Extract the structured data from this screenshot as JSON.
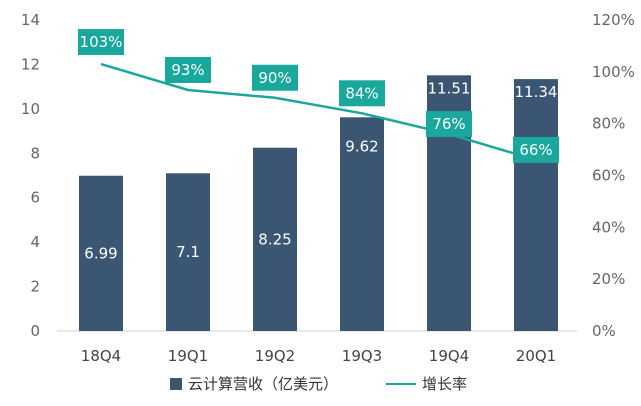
{
  "chart_data": {
    "type": "bar+line",
    "categories": [
      "18Q4",
      "19Q1",
      "19Q2",
      "19Q3",
      "19Q4",
      "20Q1"
    ],
    "series": [
      {
        "name": "云计算营收（亿美元）",
        "type": "bar",
        "axis": "left",
        "values": [
          6.99,
          7.1,
          8.25,
          9.62,
          11.51,
          11.34
        ],
        "labels": [
          "6.99",
          "7.1",
          "8.25",
          "9.62",
          "11.51",
          "11.34"
        ],
        "color": "#3b5673"
      },
      {
        "name": "增长率",
        "type": "line",
        "axis": "right",
        "values": [
          103,
          93,
          90,
          84,
          76,
          66
        ],
        "labels": [
          "103%",
          "93%",
          "90%",
          "84%",
          "76%",
          "66%"
        ],
        "color": "#1aa89d"
      }
    ],
    "left_axis": {
      "min": 0,
      "max": 14,
      "ticks": [
        "0",
        "2",
        "4",
        "6",
        "8",
        "10",
        "12",
        "14"
      ]
    },
    "right_axis": {
      "min": 0,
      "max": 120,
      "ticks": [
        "0%",
        "20%",
        "40%",
        "60%",
        "80%",
        "100%",
        "120%"
      ]
    },
    "legend": [
      "云计算营收（亿美元）",
      "增长率"
    ],
    "legend_position": "bottom"
  }
}
